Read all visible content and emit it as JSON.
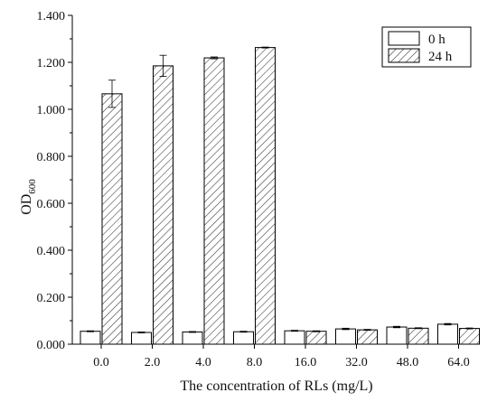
{
  "chart_data": {
    "type": "bar",
    "title": "",
    "xlabel": "The concentration of RLs (mg/L)",
    "ylabel": {
      "main": "OD",
      "sub": "600"
    },
    "categories": [
      "0.0",
      "2.0",
      "4.0",
      "8.0",
      "16.0",
      "32.0",
      "48.0",
      "64.0"
    ],
    "ylim": [
      0,
      1.4
    ],
    "yticks": [
      0,
      0.2,
      0.4,
      0.6,
      0.8,
      1.0,
      1.2,
      1.4
    ],
    "ytick_labels": [
      "0.000",
      "0.200",
      "0.400",
      "0.600",
      "0.800",
      "1.000",
      "1.200",
      "1.400"
    ],
    "grid": false,
    "legend_position": "top-right",
    "series": [
      {
        "name": "0 h",
        "pattern": "solid-white",
        "values": [
          0.055,
          0.05,
          0.052,
          0.053,
          0.057,
          0.065,
          0.073,
          0.085
        ],
        "errors": [
          0.002,
          0.002,
          0.002,
          0.002,
          0.002,
          0.003,
          0.003,
          0.003
        ]
      },
      {
        "name": "24 h",
        "pattern": "diagonal-hatch",
        "values": [
          1.066,
          1.185,
          1.219,
          1.263,
          0.055,
          0.061,
          0.068,
          0.067
        ],
        "errors": [
          0.058,
          0.045,
          0.004,
          0.002,
          0.002,
          0.002,
          0.002,
          0.002
        ]
      }
    ]
  }
}
